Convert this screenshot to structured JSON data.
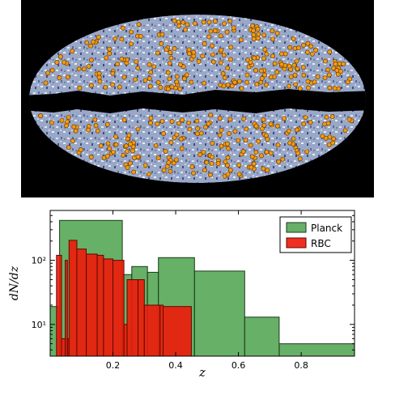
{
  "sky_map": {
    "projection": "mollweide",
    "colors": {
      "background": "#000000",
      "marker_fill": "#f39c12",
      "marker_edge": "#6b3a00",
      "map_light": "#dfe6f0",
      "map_dark": "#2e3a6e"
    }
  },
  "chart_data": {
    "type": "histogram",
    "xlabel": "z",
    "ylabel": "dN/dz",
    "xlim": [
      0.0,
      0.97
    ],
    "ylim": [
      3.2,
      600
    ],
    "yscale": "log",
    "xticks": [
      0.2,
      0.4,
      0.6,
      0.8
    ],
    "xtick_labels": [
      "0.2",
      "0.4",
      "0.6",
      "0.8"
    ],
    "yticks": [
      10,
      100
    ],
    "ytick_labels": [
      "10¹",
      "10²"
    ],
    "legend_placement": "top-right",
    "series": [
      {
        "name": "Planck",
        "color": "#4ca24c",
        "bins": [
          {
            "x0": 0.0,
            "x1": 0.03,
            "y": 19
          },
          {
            "x0": 0.03,
            "x1": 0.23,
            "y": 420
          },
          {
            "x0": 0.23,
            "x1": 0.26,
            "y": 60
          },
          {
            "x0": 0.26,
            "x1": 0.31,
            "y": 80
          },
          {
            "x0": 0.31,
            "x1": 0.345,
            "y": 65
          },
          {
            "x0": 0.345,
            "x1": 0.46,
            "y": 110
          },
          {
            "x0": 0.46,
            "x1": 0.62,
            "y": 68
          },
          {
            "x0": 0.62,
            "x1": 0.73,
            "y": 13
          },
          {
            "x0": 0.73,
            "x1": 0.97,
            "y": 5
          }
        ]
      },
      {
        "name": "RBC",
        "color": "#ee1a0a",
        "bins": [
          {
            "x0": 0.02,
            "x1": 0.036,
            "y": 120
          },
          {
            "x0": 0.036,
            "x1": 0.048,
            "y": 6
          },
          {
            "x0": 0.048,
            "x1": 0.055,
            "y": 100
          },
          {
            "x0": 0.055,
            "x1": 0.06,
            "y": 6
          },
          {
            "x0": 0.06,
            "x1": 0.085,
            "y": 205
          },
          {
            "x0": 0.085,
            "x1": 0.115,
            "y": 150
          },
          {
            "x0": 0.115,
            "x1": 0.15,
            "y": 125
          },
          {
            "x0": 0.15,
            "x1": 0.17,
            "y": 120
          },
          {
            "x0": 0.17,
            "x1": 0.2,
            "y": 105
          },
          {
            "x0": 0.2,
            "x1": 0.235,
            "y": 100
          },
          {
            "x0": 0.235,
            "x1": 0.245,
            "y": 10
          },
          {
            "x0": 0.245,
            "x1": 0.28,
            "y": 50
          },
          {
            "x0": 0.28,
            "x1": 0.3,
            "y": 50
          },
          {
            "x0": 0.3,
            "x1": 0.35,
            "y": 20
          },
          {
            "x0": 0.35,
            "x1": 0.36,
            "y": 20
          },
          {
            "x0": 0.36,
            "x1": 0.45,
            "y": 19
          }
        ]
      }
    ]
  }
}
